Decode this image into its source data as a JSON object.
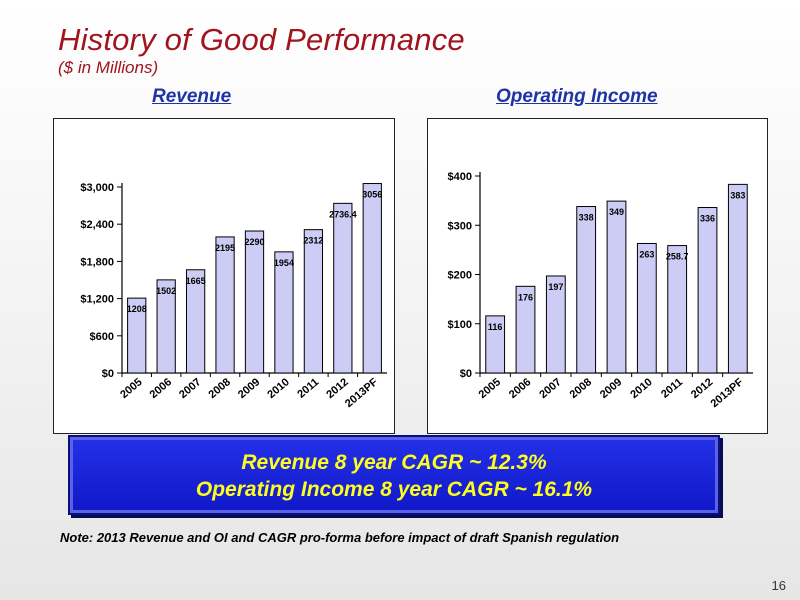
{
  "header": {
    "title": "History of Good Performance",
    "subtitle": "($ in Millions)"
  },
  "charts": {
    "revenue_heading": "Revenue",
    "oi_heading": "Operating Income"
  },
  "chart_data": [
    {
      "type": "bar",
      "title": "Revenue",
      "categories": [
        "2005",
        "2006",
        "2007",
        "2008",
        "2009",
        "2010",
        "2011",
        "2012",
        "2013PF"
      ],
      "values": [
        1208,
        1502,
        1665,
        2195,
        2290,
        1954,
        2312,
        2736.4,
        3056
      ],
      "data_labels": [
        "1208",
        "1502",
        "1665",
        "2195",
        "2290",
        "1954",
        "2312",
        "2736.4",
        "3056"
      ],
      "yticks": [
        "$0",
        "$600",
        "$1,200",
        "$1,800",
        "$2,400",
        "$3,000"
      ],
      "ylim": [
        0,
        3000
      ],
      "bar_color": "#ccccf5",
      "grid": false
    },
    {
      "type": "bar",
      "title": "Operating Income",
      "categories": [
        "2005",
        "2006",
        "2007",
        "2008",
        "2009",
        "2010",
        "2011",
        "2012",
        "2013PF"
      ],
      "values": [
        116,
        176,
        197,
        338,
        349,
        263,
        258.7,
        336,
        383
      ],
      "data_labels": [
        "116",
        "176",
        "197",
        "338",
        "349",
        "263",
        "258.7",
        "336",
        "383"
      ],
      "yticks": [
        "$0",
        "$100",
        "$200",
        "$300",
        "$400"
      ],
      "ylim": [
        0,
        400
      ],
      "bar_color": "#ccccf5",
      "grid": false
    }
  ],
  "cagr": {
    "line1": "Revenue  8 year CAGR ~  12.3%",
    "line2": "Operating Income 8 year CAGR ~ 16.1%",
    "text_color": "#ffff1e",
    "bg_color": "#1a22d8"
  },
  "note": "Note: 2013 Revenue and OI and CAGR pro-forma before impact of draft Spanish regulation",
  "page_number": "16",
  "colors": {
    "title": "#a0141e",
    "heading": "#1f33a8"
  }
}
